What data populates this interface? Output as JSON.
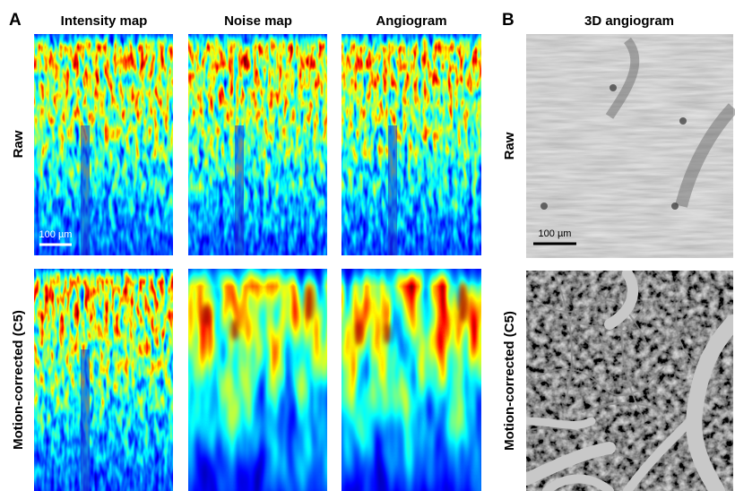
{
  "panels": [
    {
      "label": "A",
      "columns": [
        "Intensity map",
        "Noise map",
        "Angiogram"
      ],
      "rows": [
        "Raw",
        "Motion-corrected (C5)"
      ],
      "scale_bar": "100 µm"
    },
    {
      "label": "B",
      "columns": [
        "3D angiogram"
      ],
      "rows": [
        "Raw",
        "Motion-corrected (C5)"
      ],
      "scale_bar": "100 µm"
    }
  ]
}
